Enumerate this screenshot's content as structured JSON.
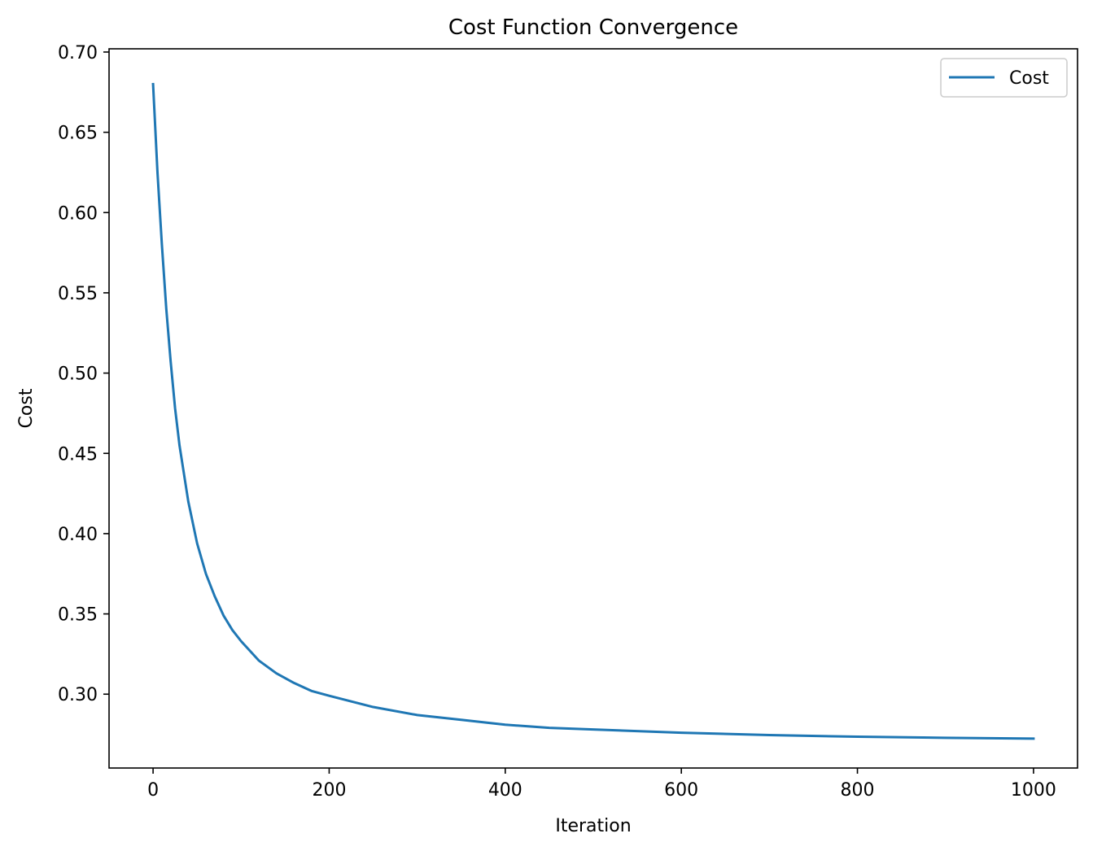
{
  "chart_data": {
    "type": "line",
    "title": "Cost Function Convergence",
    "xlabel": "Iteration",
    "ylabel": "Cost",
    "xlim": [
      -50,
      1050
    ],
    "ylim": [
      0.254,
      0.702
    ],
    "xticks": [
      0,
      200,
      400,
      600,
      800,
      1000
    ],
    "yticks": [
      0.3,
      0.35,
      0.4,
      0.45,
      0.5,
      0.55,
      0.6,
      0.65,
      0.7
    ],
    "grid": false,
    "legend": "top-right",
    "series": [
      {
        "name": "Cost",
        "color": "#1f77b4",
        "x": [
          0,
          5,
          10,
          15,
          20,
          25,
          30,
          40,
          50,
          60,
          70,
          80,
          90,
          100,
          120,
          140,
          160,
          180,
          200,
          250,
          300,
          350,
          400,
          450,
          500,
          600,
          700,
          800,
          900,
          1000
        ],
        "y": [
          0.68,
          0.625,
          0.58,
          0.54,
          0.507,
          0.478,
          0.455,
          0.42,
          0.394,
          0.375,
          0.361,
          0.349,
          0.34,
          0.333,
          0.321,
          0.313,
          0.307,
          0.302,
          0.299,
          0.292,
          0.287,
          0.284,
          0.281,
          0.279,
          0.278,
          0.276,
          0.2745,
          0.2735,
          0.2728,
          0.2723
        ]
      }
    ]
  }
}
